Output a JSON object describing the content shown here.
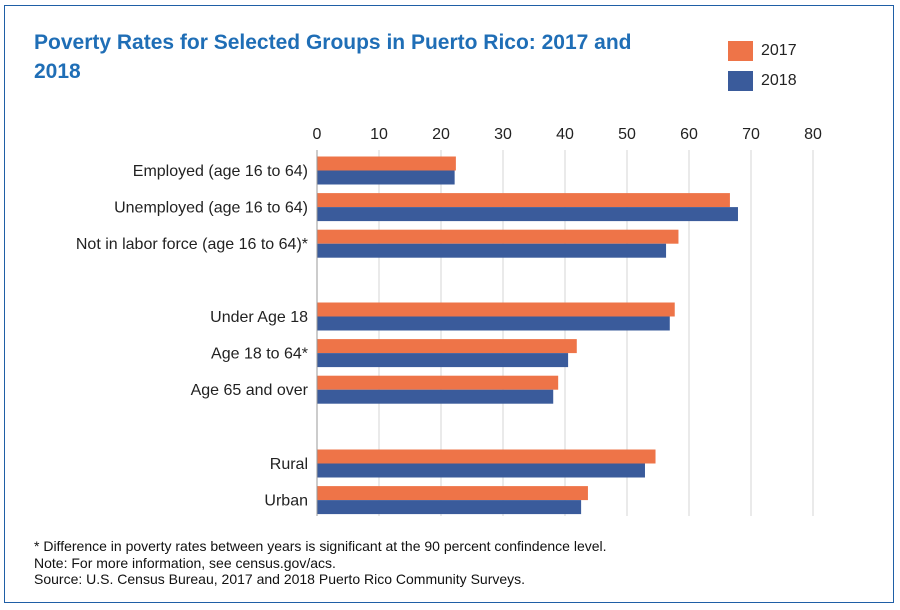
{
  "title": "Poverty Rates for Selected Groups in Puerto Rico: 2017 and 2018",
  "legend": [
    {
      "name": "2017",
      "color": "#ee7448"
    },
    {
      "name": "2018",
      "color": "#3a5b9b"
    }
  ],
  "notes": [
    "* Difference in poverty rates between years is significant at the 90 percent confindence level.",
    "Note: For more information, see census.gov/acs.",
    "Source: U.S. Census Bureau, 2017 and 2018 Puerto Rico Community Surveys."
  ],
  "chart_data": {
    "type": "bar",
    "orientation": "horizontal",
    "title": "Poverty Rates for Selected Groups in Puerto Rico: 2017 and 2018",
    "xlabel": "",
    "ylabel": "",
    "xlim": [
      0,
      80
    ],
    "x_ticks": [
      0,
      10,
      20,
      30,
      40,
      50,
      60,
      70,
      80
    ],
    "x_axis_position": "top",
    "grid": true,
    "legend_position": "top-right",
    "groups": [
      [
        "Employed (age 16 to 64)",
        "Unemployed (age 16 to 64)",
        "Not in labor force (age 16 to 64)*"
      ],
      [
        "Under Age 18",
        "Age 18 to 64*",
        "Age 65 and over"
      ],
      [
        "Rural",
        "Urban"
      ]
    ],
    "categories": [
      "Employed (age 16 to 64)",
      "Unemployed (age 16 to 64)",
      "Not in labor force (age 16 to 64)*",
      "Under Age 18",
      "Age 18 to 64*",
      "Age 65 and over",
      "Rural",
      "Urban"
    ],
    "series": [
      {
        "name": "2017",
        "color": "#ee7448",
        "values": [
          22.4,
          66.6,
          58.3,
          57.7,
          41.9,
          38.9,
          54.6,
          43.7
        ]
      },
      {
        "name": "2018",
        "color": "#3a5b9b",
        "values": [
          22.2,
          67.9,
          56.3,
          56.9,
          40.5,
          38.1,
          52.9,
          42.6
        ]
      }
    ]
  }
}
